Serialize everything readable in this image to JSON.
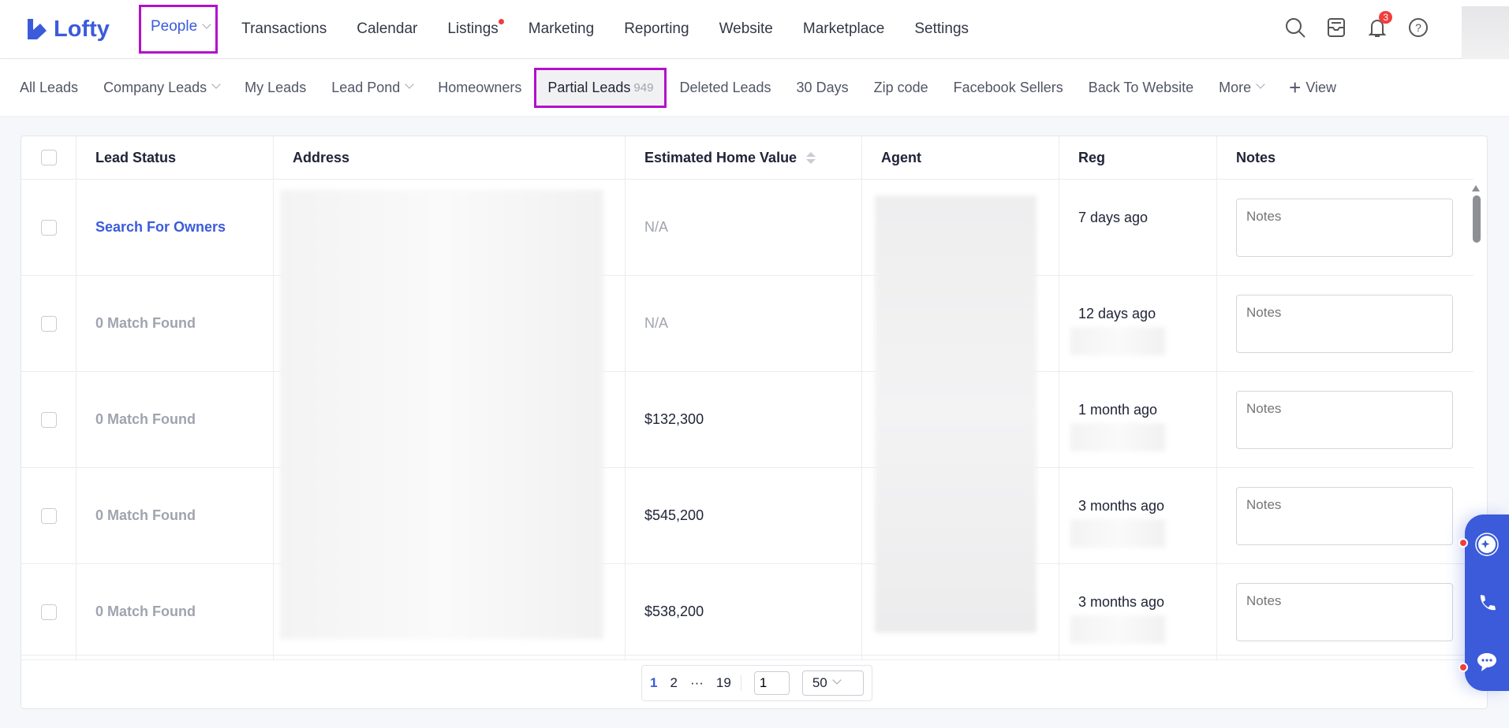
{
  "app": {
    "logo": "Lofty",
    "brand_color": "#3b5bdb",
    "highlight_color": "#b30fcc"
  },
  "nav": {
    "items": [
      {
        "label": "People",
        "active": true,
        "dropdown": true
      },
      {
        "label": "Transactions"
      },
      {
        "label": "Calendar"
      },
      {
        "label": "Listings",
        "dot": true
      },
      {
        "label": "Marketing"
      },
      {
        "label": "Reporting"
      },
      {
        "label": "Website"
      },
      {
        "label": "Marketplace"
      },
      {
        "label": "Settings"
      }
    ],
    "notification_count": "3"
  },
  "subnav": {
    "items": [
      {
        "label": "All Leads"
      },
      {
        "label": "Company Leads",
        "dropdown": true
      },
      {
        "label": "My Leads"
      },
      {
        "label": "Lead Pond",
        "dropdown": true
      },
      {
        "label": "Homeowners"
      },
      {
        "label": "Partial Leads",
        "count": "949",
        "active": true
      },
      {
        "label": "Deleted Leads"
      },
      {
        "label": "30 Days"
      },
      {
        "label": "Zip code"
      },
      {
        "label": "Facebook Sellers"
      },
      {
        "label": "Back To Website"
      },
      {
        "label": "More",
        "dropdown": true
      }
    ],
    "add_view": "View"
  },
  "table": {
    "columns": [
      "Lead Status",
      "Address",
      "Estimated Home Value",
      "Agent",
      "Reg",
      "Notes"
    ],
    "rows": [
      {
        "status": "Search For Owners",
        "value": "N/A",
        "reg": "7 days ago"
      },
      {
        "status": "0 Match Found",
        "value": "N/A",
        "reg": "12 days ago"
      },
      {
        "status": "0 Match Found",
        "value": "$132,300",
        "reg": "1 month ago"
      },
      {
        "status": "0 Match Found",
        "value": "$545,200",
        "reg": "3 months ago"
      },
      {
        "status": "0 Match Found",
        "value": "$538,200",
        "reg": "3 months ago"
      }
    ],
    "notes_placeholder": "Notes"
  },
  "pagination": {
    "pages": [
      "1",
      "2",
      "19"
    ],
    "ellipsis": "···",
    "current": "1",
    "jump_value": "1",
    "page_size": "50"
  }
}
